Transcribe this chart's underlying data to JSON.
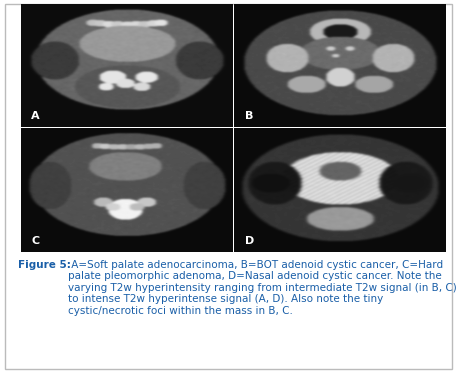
{
  "figure_title": "Figure 5:",
  "caption_rest": " A=Soft palate adenocarcinoma, B=BOT adenoid cystic cancer, C=Hard palate pleomorphic adenoma, D=Nasal adenoid cystic cancer. Note the varying T2w hyperintensity ranging from intermediate T2w signal (in B, C) to intense T2w hyperintense signal (A, D). Also note the tiny cystic/necrotic foci within the mass in B, C.",
  "labels": [
    "A",
    "B",
    "C",
    "D"
  ],
  "background_color": "#ffffff",
  "caption_color": "#1a5fa8",
  "caption_fontsize": 7.5,
  "label_color": "#ffffff",
  "label_fontsize": 8,
  "border_color": "#bbbbbb"
}
